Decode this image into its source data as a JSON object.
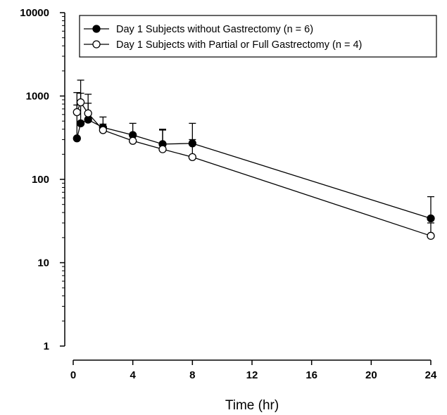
{
  "chart_data": {
    "type": "line",
    "title": "",
    "xlabel": "Time (hr)",
    "ylabel": "",
    "yscale": "log",
    "xlim": [
      0,
      24
    ],
    "ylim": [
      1,
      10000
    ],
    "xticks": [
      0,
      4,
      8,
      12,
      16,
      20,
      24
    ],
    "yticks": [
      1,
      10,
      100,
      1000,
      10000
    ],
    "xtick_labels": [
      "0",
      "4",
      "8",
      "12",
      "16",
      "20",
      "24"
    ],
    "ytick_labels": [
      "1",
      "10",
      "100",
      "1000",
      "10000"
    ],
    "grid": false,
    "legend_position": "top",
    "series": [
      {
        "name": "Day 1 Subjects without Gastrectomy (n = 6)",
        "marker": "filled-circle",
        "color": "#000000",
        "x": [
          0.25,
          0.5,
          1,
          2,
          4,
          6,
          8,
          24
        ],
        "y": [
          310,
          470,
          520,
          420,
          340,
          265,
          270,
          34
        ],
        "error_upper": [
          1100,
          1550,
          1050,
          560,
          470,
          400,
          470,
          62
        ]
      },
      {
        "name": "Day 1 Subjects with Partial or Full Gastrectomy (n = 4)",
        "marker": "open-circle",
        "color": "#000000",
        "x": [
          0.25,
          0.5,
          1,
          2,
          4,
          6,
          8,
          24
        ],
        "y": [
          640,
          840,
          620,
          390,
          290,
          230,
          185,
          21
        ],
        "error_upper": [
          780,
          1080,
          820,
          460,
          330,
          390,
          300,
          30
        ]
      }
    ]
  }
}
